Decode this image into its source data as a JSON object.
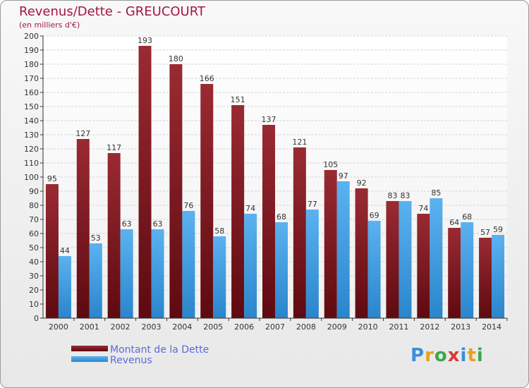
{
  "page": {
    "title": "Revenus/Dette - GREUCOURT",
    "subtitle": "(en milliers d'€)",
    "logo": "Proxiti"
  },
  "colors": {
    "dette": "#8b1a22",
    "revenus": "#3a9be0",
    "title": "#a5173f",
    "legend_text": "#5a6bd8"
  },
  "chart_data": {
    "type": "bar",
    "title": "Revenus/Dette - GREUCOURT",
    "subtitle": "(en milliers d'€)",
    "categories": [
      "2000",
      "2001",
      "2002",
      "2003",
      "2004",
      "2005",
      "2006",
      "2007",
      "2008",
      "2009",
      "2010",
      "2011",
      "2012",
      "2013",
      "2014"
    ],
    "series": [
      {
        "name": "Montant de la Dette",
        "values": [
          95,
          127,
          117,
          193,
          180,
          166,
          151,
          137,
          121,
          105,
          92,
          83,
          74,
          64,
          57
        ]
      },
      {
        "name": "Revenus",
        "values": [
          44,
          53,
          63,
          63,
          76,
          58,
          74,
          68,
          77,
          97,
          69,
          83,
          85,
          68,
          59
        ]
      }
    ],
    "ylim": [
      0,
      200
    ],
    "ytick_step": 10,
    "grid": true,
    "legend": "bottom-left"
  }
}
